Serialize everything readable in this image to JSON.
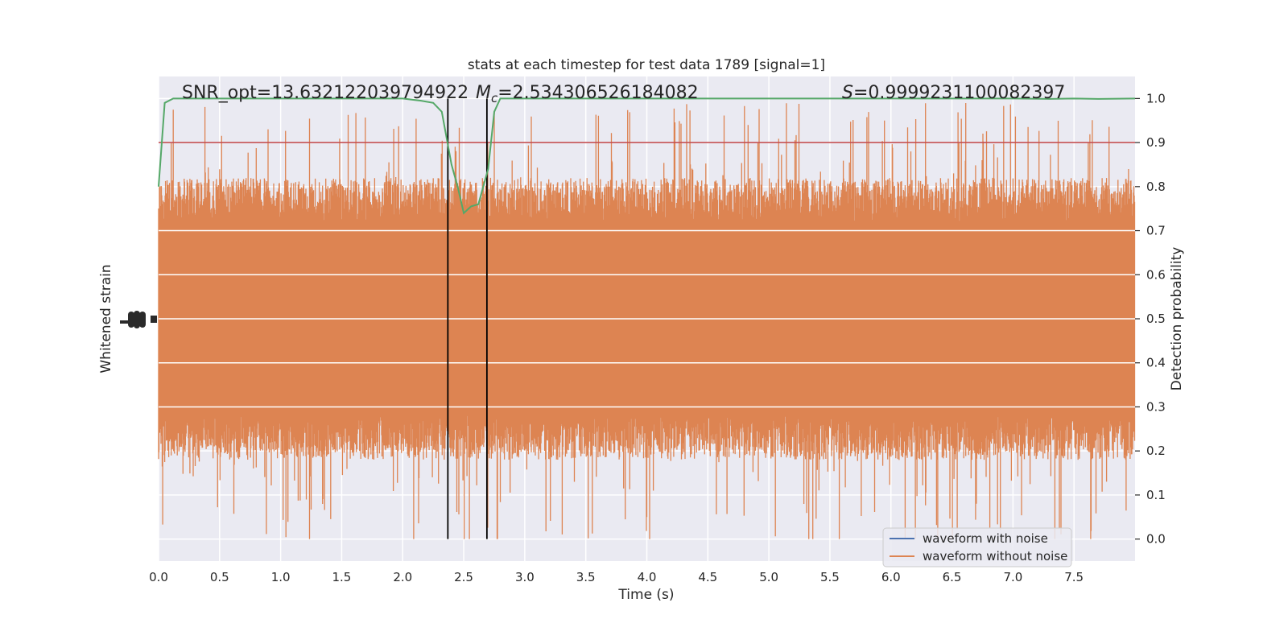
{
  "chart_data": {
    "type": "line",
    "title": "stats at each timestep for test data 1789 [signal=1]",
    "xlabel": "Time (s)",
    "ylabel_left": "Whitened strain",
    "ylabel_right": "Detection probability",
    "xlim": [
      0.0,
      8.0
    ],
    "ylim_right": [
      -0.05,
      1.05
    ],
    "x_ticks": [
      "0.0",
      "0.5",
      "1.0",
      "1.5",
      "2.0",
      "2.5",
      "3.0",
      "3.5",
      "4.0",
      "4.5",
      "5.0",
      "5.5",
      "6.0",
      "6.5",
      "7.0",
      "7.5"
    ],
    "x_tick_values": [
      0.0,
      0.5,
      1.0,
      1.5,
      2.0,
      2.5,
      3.0,
      3.5,
      4.0,
      4.5,
      5.0,
      5.5,
      6.0,
      6.5,
      7.0,
      7.5
    ],
    "y_right_ticks": [
      "0.0",
      "0.1",
      "0.2",
      "0.3",
      "0.4",
      "0.5",
      "0.6",
      "0.7",
      "0.8",
      "0.9",
      "1.0"
    ],
    "y_right_tick_values": [
      0.0,
      0.1,
      0.2,
      0.3,
      0.4,
      0.5,
      0.6,
      0.7,
      0.8,
      0.9,
      1.0
    ],
    "annotations": {
      "snr": "SNR_opt=13.632122039794922",
      "mc_symbol": "M",
      "mc_sub": "c",
      "mc_value": "=2.534306526184082",
      "s_symbol": "S",
      "s_value": "=0.9999231100082397"
    },
    "legend": {
      "placement": "lower-right",
      "entries": [
        {
          "label": "waveform with noise",
          "color": "#4c72b0"
        },
        {
          "label": "waveform without noise",
          "color": "#dd8452"
        }
      ]
    },
    "grid": true,
    "background": "#eaeaf2",
    "strain_band": {
      "center": 0.5,
      "typical_low": 0.28,
      "typical_high": 0.72,
      "min": 0.0,
      "max": 1.0,
      "color": "#dd8452"
    },
    "threshold": {
      "value": 0.9,
      "color": "#c44e52"
    },
    "event_window": {
      "x": [
        2.37,
        2.69
      ],
      "color": "#000000"
    },
    "detection_probability": {
      "color": "#55a868",
      "x": [
        0.0,
        0.05,
        0.12,
        0.3,
        1.0,
        2.0,
        2.15,
        2.25,
        2.32,
        2.4,
        2.45,
        2.5,
        2.56,
        2.62,
        2.66,
        2.7,
        2.75,
        2.8,
        3.0,
        4.0,
        5.0,
        6.0,
        7.0,
        7.3,
        7.5,
        7.7,
        8.0
      ],
      "y": [
        0.8,
        0.99,
        1.0,
        1.0,
        1.0,
        1.0,
        0.995,
        0.99,
        0.97,
        0.85,
        0.8,
        0.74,
        0.755,
        0.76,
        0.8,
        0.84,
        0.97,
        1.0,
        1.0,
        1.0,
        1.0,
        1.0,
        1.0,
        0.999,
        1.0,
        0.999,
        1.0
      ]
    }
  }
}
